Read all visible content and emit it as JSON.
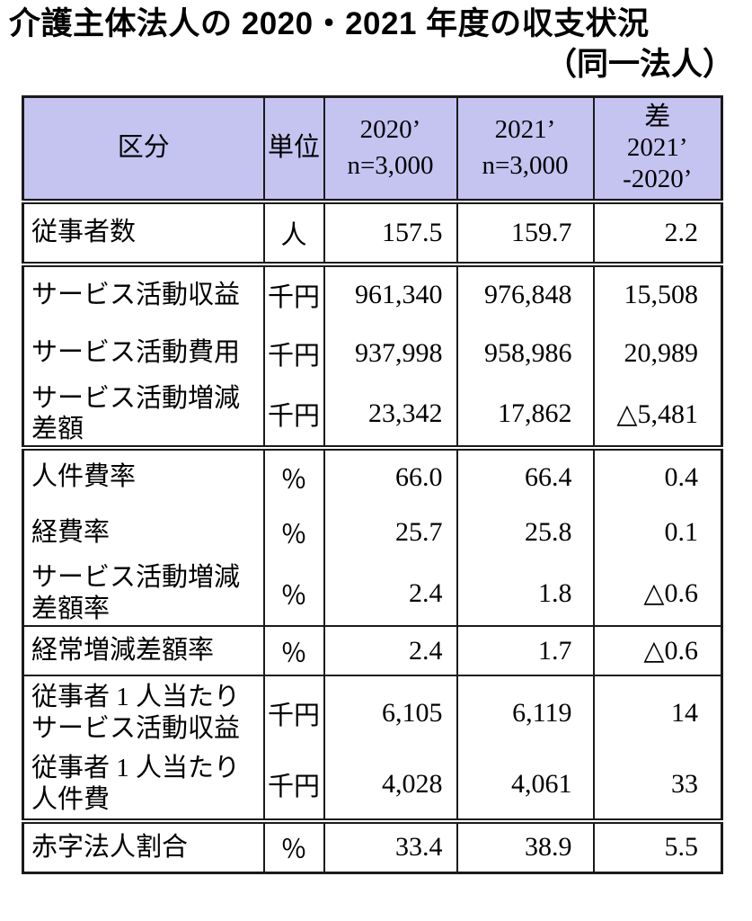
{
  "title": {
    "line1": "介護主体法人の 2020・2021 年度の収支状況",
    "line2": "（同一法人）"
  },
  "colors": {
    "header_bg": "#c5c3f0",
    "border": "#1a1a1a",
    "text": "#000000"
  },
  "table": {
    "header": {
      "category": "区分",
      "unit": "単位",
      "y2020": "2020’\nn=3,000",
      "y2021": "2021’\nn=3,000",
      "diff": "差\n2021’\n-2020’"
    },
    "rows": [
      {
        "label": "従事者数",
        "unit": "人",
        "y2020": "157.5",
        "y2021": "159.7",
        "diff": "2.2"
      },
      {
        "label": "サービス活動収益",
        "unit": "千円",
        "y2020": "961,340",
        "y2021": "976,848",
        "diff": "15,508"
      },
      {
        "label": "サービス活動費用",
        "unit": "千円",
        "y2020": "937,998",
        "y2021": "958,986",
        "diff": "20,989"
      },
      {
        "label": "サービス活動増減\n差額",
        "unit": "千円",
        "y2020": "23,342",
        "y2021": "17,862",
        "diff": "△5,481"
      },
      {
        "label": "人件費率",
        "unit": "％",
        "y2020": "66.0",
        "y2021": "66.4",
        "diff": "0.4"
      },
      {
        "label": "経費率",
        "unit": "％",
        "y2020": "25.7",
        "y2021": "25.8",
        "diff": "0.1"
      },
      {
        "label": "サービス活動増減\n差額率",
        "unit": "％",
        "y2020": "2.4",
        "y2021": "1.8",
        "diff": "△0.6"
      },
      {
        "label": "経常増減差額率",
        "unit": "％",
        "y2020": "2.4",
        "y2021": "1.7",
        "diff": "△0.6"
      },
      {
        "label": "従事者 1 人当たり\nサービス活動収益",
        "unit": "千円",
        "y2020": "6,105",
        "y2021": "6,119",
        "diff": "14"
      },
      {
        "label": "従事者 1 人当たり\n人件費",
        "unit": "千円",
        "y2020": "4,028",
        "y2021": "4,061",
        "diff": "33"
      },
      {
        "label": "赤字法人割合",
        "unit": "％",
        "y2020": "33.4",
        "y2021": "38.9",
        "diff": "5.5"
      }
    ]
  }
}
